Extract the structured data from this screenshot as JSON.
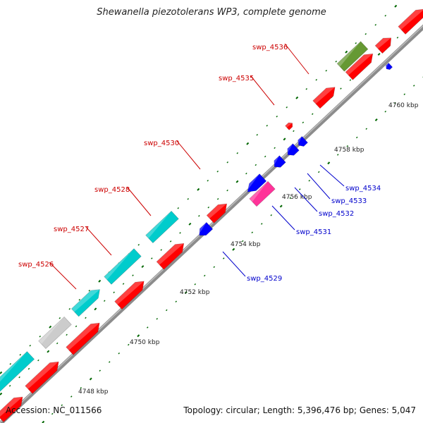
{
  "title": "Shewanella piezotolerans WP3, complete genome",
  "footer": {
    "accession": "Accession: NC_011566",
    "summary": "Topology: circular; Length: 5,396,476 bp; Genes: 5,047"
  },
  "colors": {
    "backbone": "#8c8c8c",
    "forward_gene": "#ff0000",
    "reverse_gene": "#0000ff",
    "cds_cyan": "#00cccc",
    "cds_gray": "#cccccc",
    "cds_olive": "#669933",
    "cds_magenta": "#ff3399",
    "tick": "#006600",
    "label_forward": "#cc0000",
    "label_reverse": "#0000cc"
  },
  "scale_labels": [
    {
      "kbp": 4748,
      "text": "4748 kbp"
    },
    {
      "kbp": 4750,
      "text": "4750 kbp"
    },
    {
      "kbp": 4752,
      "text": "4752 kbp"
    },
    {
      "kbp": 4754,
      "text": "4754 kbp"
    },
    {
      "kbp": 4756,
      "text": "4756 kbp"
    },
    {
      "kbp": 4758,
      "text": "4758 kbp"
    },
    {
      "kbp": 4760,
      "text": "4760 kbp"
    }
  ],
  "gene_labels": [
    {
      "text": "swp_4526",
      "strand": "forward"
    },
    {
      "text": "swp_4527",
      "strand": "forward"
    },
    {
      "text": "swp_4528",
      "strand": "forward"
    },
    {
      "text": "swp_4530",
      "strand": "forward"
    },
    {
      "text": "swp_4535",
      "strand": "forward"
    },
    {
      "text": "swp_4536",
      "strand": "forward"
    },
    {
      "text": "swp_4529",
      "strand": "reverse"
    },
    {
      "text": "swp_4531",
      "strand": "reverse"
    },
    {
      "text": "swp_4532",
      "strand": "reverse"
    },
    {
      "text": "swp_4533",
      "strand": "reverse"
    },
    {
      "text": "swp_4534",
      "strand": "reverse"
    }
  ]
}
